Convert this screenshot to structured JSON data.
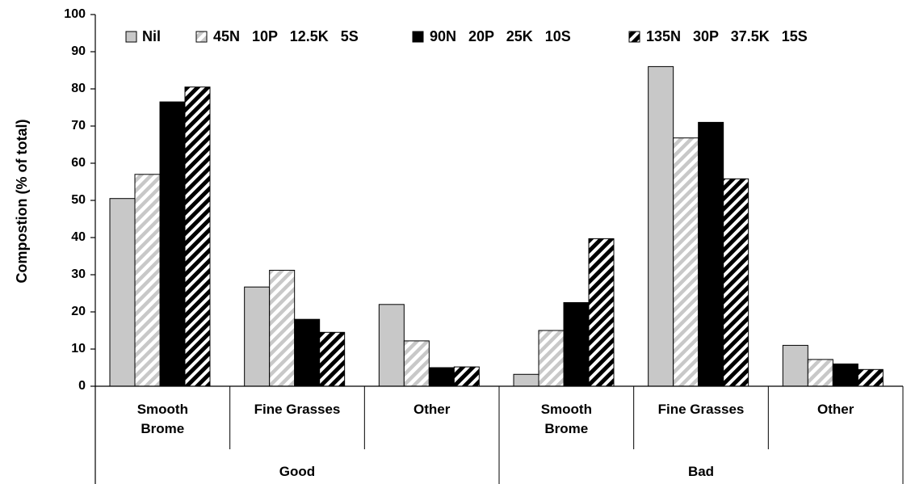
{
  "chart_data": {
    "type": "bar",
    "ylabel": "Compostion (% of total)",
    "ylim": [
      0,
      100
    ],
    "yticks": [
      "0",
      "10",
      "20",
      "30",
      "40",
      "50",
      "60",
      "70",
      "80",
      "90",
      "100"
    ],
    "groups": [
      {
        "label": "Good",
        "categories": [
          [
            "Smooth",
            "Brome"
          ],
          [
            "Fine Grasses"
          ],
          [
            "Other"
          ]
        ]
      },
      {
        "label": "Bad",
        "categories": [
          [
            "Smooth",
            "Brome"
          ],
          [
            "Fine Grasses"
          ],
          [
            "Other"
          ]
        ]
      }
    ],
    "legend_position": "top",
    "grid": false,
    "series": [
      {
        "name": "Nil",
        "fill": "#c8c8c8",
        "pattern": "solid",
        "values": [
          50.5,
          26.7,
          22.0,
          3.2,
          86.0,
          11.0
        ]
      },
      {
        "name": "45N   10P   12.5K   5S",
        "fill": "#c8c8c8",
        "pattern": "light-diagonal",
        "values": [
          57.0,
          31.2,
          12.2,
          15.0,
          66.8,
          7.2
        ]
      },
      {
        "name": "90N   20P   25K   10S",
        "fill": "#000000",
        "pattern": "solid",
        "values": [
          76.5,
          18.0,
          5.0,
          22.5,
          71.0,
          6.0
        ]
      },
      {
        "name": "135N   30P   37.5K   15S",
        "fill": "#000000",
        "pattern": "dark-diagonal",
        "values": [
          80.5,
          14.5,
          5.2,
          39.7,
          55.8,
          4.5
        ]
      }
    ]
  }
}
